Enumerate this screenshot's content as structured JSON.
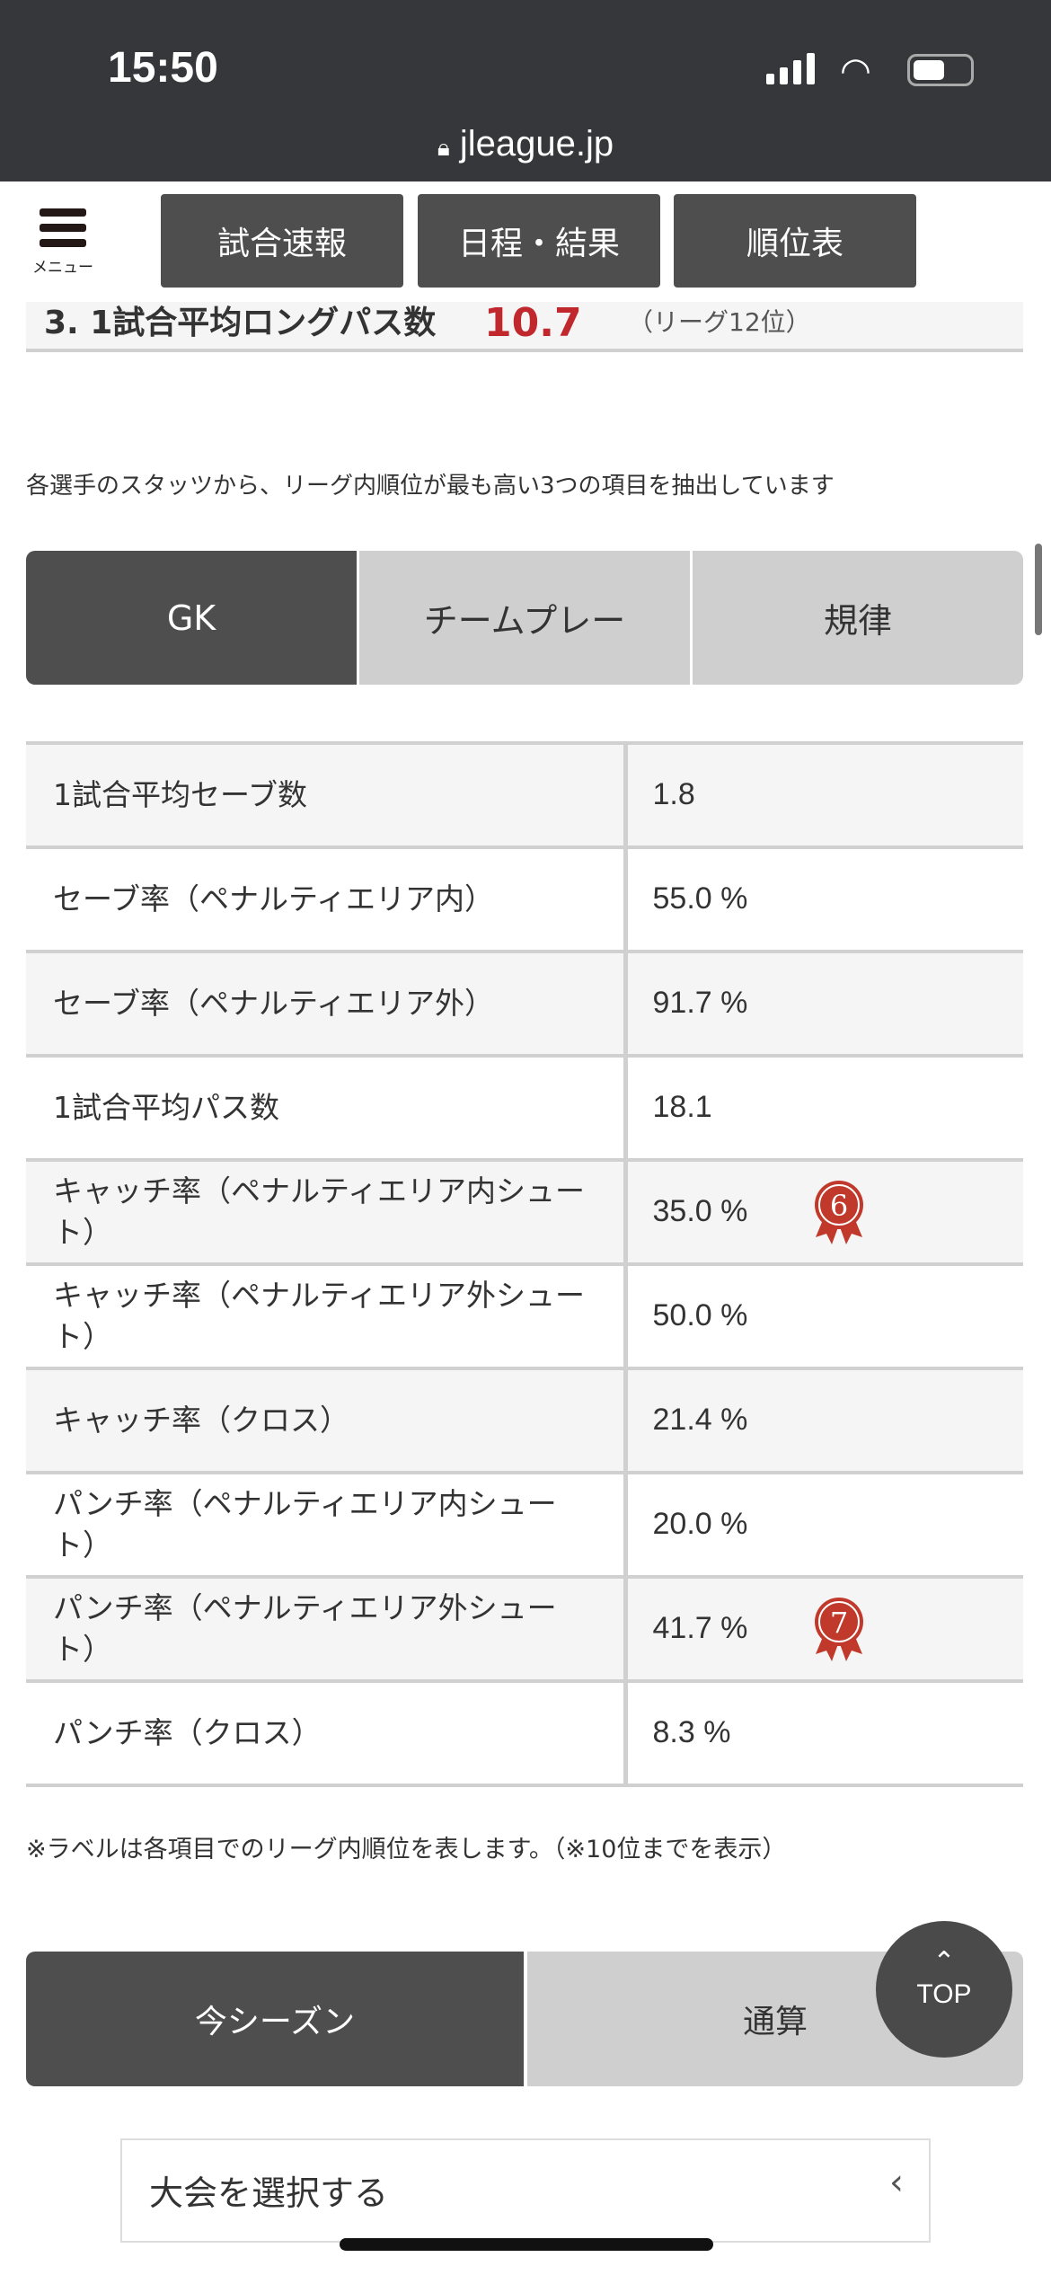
{
  "status_bar": {
    "time": "15:50",
    "url": "jleague.jp"
  },
  "header": {
    "menu_label": "メニュー",
    "nav": [
      "試合速報",
      "日程・結果",
      "順位表"
    ]
  },
  "cut_row": {
    "label": "3. 1試合平均ロングパス数",
    "value": "10.7",
    "rank": "（リーグ12位）"
  },
  "description": "各選手のスタッツから、リーグ内順位が最も高い3つの項目を抽出しています",
  "tabs": [
    "GK",
    "チームプレー",
    "規律"
  ],
  "active_tab": "GK",
  "rows": [
    {
      "label": "1試合平均セーブ数",
      "value": "1.8"
    },
    {
      "label": "セーブ率（ペナルティエリア内）",
      "value": "55.0 %"
    },
    {
      "label": "セーブ率（ペナルティエリア外）",
      "value": "91.7 %"
    },
    {
      "label": "1試合平均パス数",
      "value": "18.1"
    },
    {
      "label": "キャッチ率（ペナルティエリア内シュート）",
      "value": "35.0 %",
      "rank": "6"
    },
    {
      "label": "キャッチ率（ペナルティエリア外シュート）",
      "value": "50.0 %"
    },
    {
      "label": "キャッチ率（クロス）",
      "value": "21.4 %"
    },
    {
      "label": "パンチ率（ペナルティエリア内シュート）",
      "value": "20.0 %"
    },
    {
      "label": "パンチ率（ペナルティエリア外シュート）",
      "value": "41.7 %",
      "rank": "7"
    },
    {
      "label": "パンチ率（クロス）",
      "value": "8.3 %"
    }
  ],
  "note": "※ラベルは各項目でのリーグ内順位を表します。（※10位までを表示）",
  "season_tabs": [
    "今シーズン",
    "通算"
  ],
  "top_button": "TOP",
  "top_arrow": "⌃",
  "select": {
    "label": "大会を選択する",
    "chevron": "‹"
  },
  "colors": {
    "dark": "#4f4e4f",
    "badge": "#c0392b",
    "status": "#36373a"
  }
}
